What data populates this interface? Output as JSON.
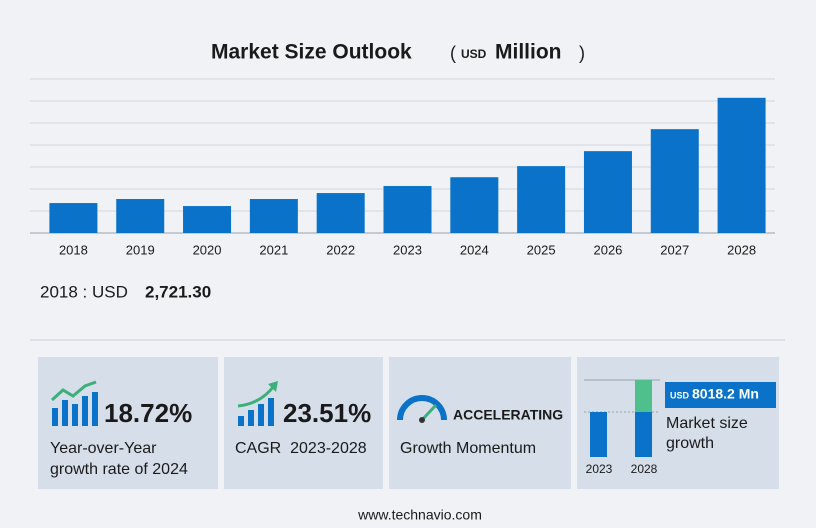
{
  "chart_data": {
    "type": "bar",
    "title": "Market Size Outlook",
    "unit": {
      "open": "(",
      "currency": "USD",
      "name": "Million",
      "close": ")"
    },
    "categories": [
      "2018",
      "2019",
      "2020",
      "2021",
      "2022",
      "2023",
      "2024",
      "2025",
      "2026",
      "2027",
      "2028"
    ],
    "values": [
      2721.3,
      3090,
      2450,
      3090,
      3630,
      4270,
      5070,
      6080,
      7440,
      9440,
      12290
    ],
    "color": "#0a72c8",
    "ylim": [
      0,
      14000
    ],
    "yticks": [
      0,
      2000,
      4000,
      6000,
      8000,
      10000,
      12000,
      14000
    ],
    "grid": true
  },
  "summary": {
    "label": "2018 : USD",
    "value": "2,721.30"
  },
  "cards": [
    {
      "value": "18.72%",
      "caption": [
        "Year-over-Year",
        "growth rate of 2024"
      ]
    },
    {
      "value": "23.51%",
      "caption": [
        "CAGR  2023-2028"
      ]
    },
    {
      "value": "ACCELERATING",
      "caption": [
        "Growth Momentum"
      ]
    },
    {
      "years": [
        "2023",
        "2028"
      ],
      "currency": "USD",
      "value": "8018.2 Mn",
      "caption": [
        "Market size",
        "growth"
      ]
    }
  ],
  "footer": "www.technavio.com"
}
